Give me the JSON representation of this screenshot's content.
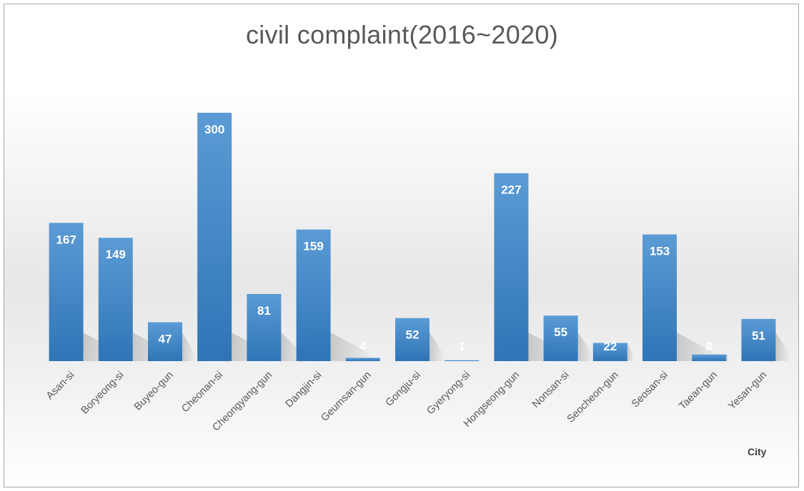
{
  "chart_data": {
    "type": "bar",
    "title": "civil complaint(2016~2020)",
    "xlabel": "City",
    "ylabel": "",
    "categories": [
      "Asan-si",
      "Boryeong-si",
      "Buyeo-gun",
      "Cheonan-si",
      "Cheongyang-gun",
      "Dangjin-si",
      "Geumsan-gun",
      "Gongju-si",
      "Gyeryong-si",
      "Hongseong-gun",
      "Nonsan-si",
      "Seocheon-gun",
      "Seosan-si",
      "Taean-gun",
      "Yesan-gun"
    ],
    "values": [
      167,
      149,
      47,
      300,
      81,
      159,
      4,
      52,
      1,
      227,
      55,
      22,
      153,
      8,
      51
    ],
    "data_labels": [
      "167",
      "149",
      "47",
      "300",
      "81",
      "159",
      "4",
      "52",
      "1",
      "227",
      "55",
      "22",
      "153",
      "8",
      "51"
    ],
    "ylim": [
      0,
      300
    ],
    "grid": false,
    "legend": "none",
    "colors": {
      "bar": "#5b9bd5",
      "bar_dark": "#2e75b6",
      "data_label": "#ffffff",
      "text": "#595959"
    }
  }
}
